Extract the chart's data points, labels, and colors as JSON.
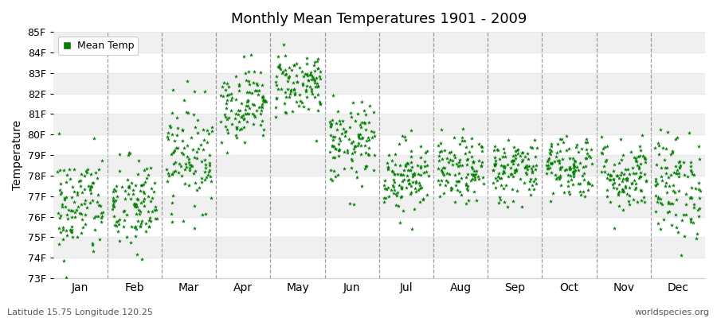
{
  "title": "Monthly Mean Temperatures 1901 - 2009",
  "ylabel": "Temperature",
  "xlabel_labels": [
    "Jan",
    "Feb",
    "Mar",
    "Apr",
    "May",
    "Jun",
    "Jul",
    "Aug",
    "Sep",
    "Oct",
    "Nov",
    "Dec"
  ],
  "footer_left": "Latitude 15.75 Longitude 120.25",
  "footer_right": "worldspecies.org",
  "legend_label": "Mean Temp",
  "marker_color": "#008000",
  "bg_color": "#FFFFFF",
  "band_color_a": "#FFFFFF",
  "band_color_b": "#F0F0F0",
  "dashed_line_color": "#888888",
  "grid_line_color": "#E8E8E8",
  "ylim_min": 73,
  "ylim_max": 85,
  "ytick_labels": [
    "73F",
    "74F",
    "75F",
    "76F",
    "77F",
    "78F",
    "79F",
    "80F",
    "81F",
    "82F",
    "83F",
    "84F",
    "85F"
  ],
  "ytick_values": [
    73,
    74,
    75,
    76,
    77,
    78,
    79,
    80,
    81,
    82,
    83,
    84,
    85
  ],
  "num_years": 109,
  "seed": 42,
  "monthly_mean": [
    76.5,
    76.5,
    79.0,
    81.5,
    82.5,
    79.5,
    78.0,
    78.2,
    78.3,
    78.5,
    78.0,
    77.5
  ],
  "monthly_std": [
    1.3,
    1.2,
    1.3,
    0.9,
    0.8,
    1.0,
    0.9,
    0.8,
    0.8,
    0.8,
    0.9,
    1.3
  ]
}
